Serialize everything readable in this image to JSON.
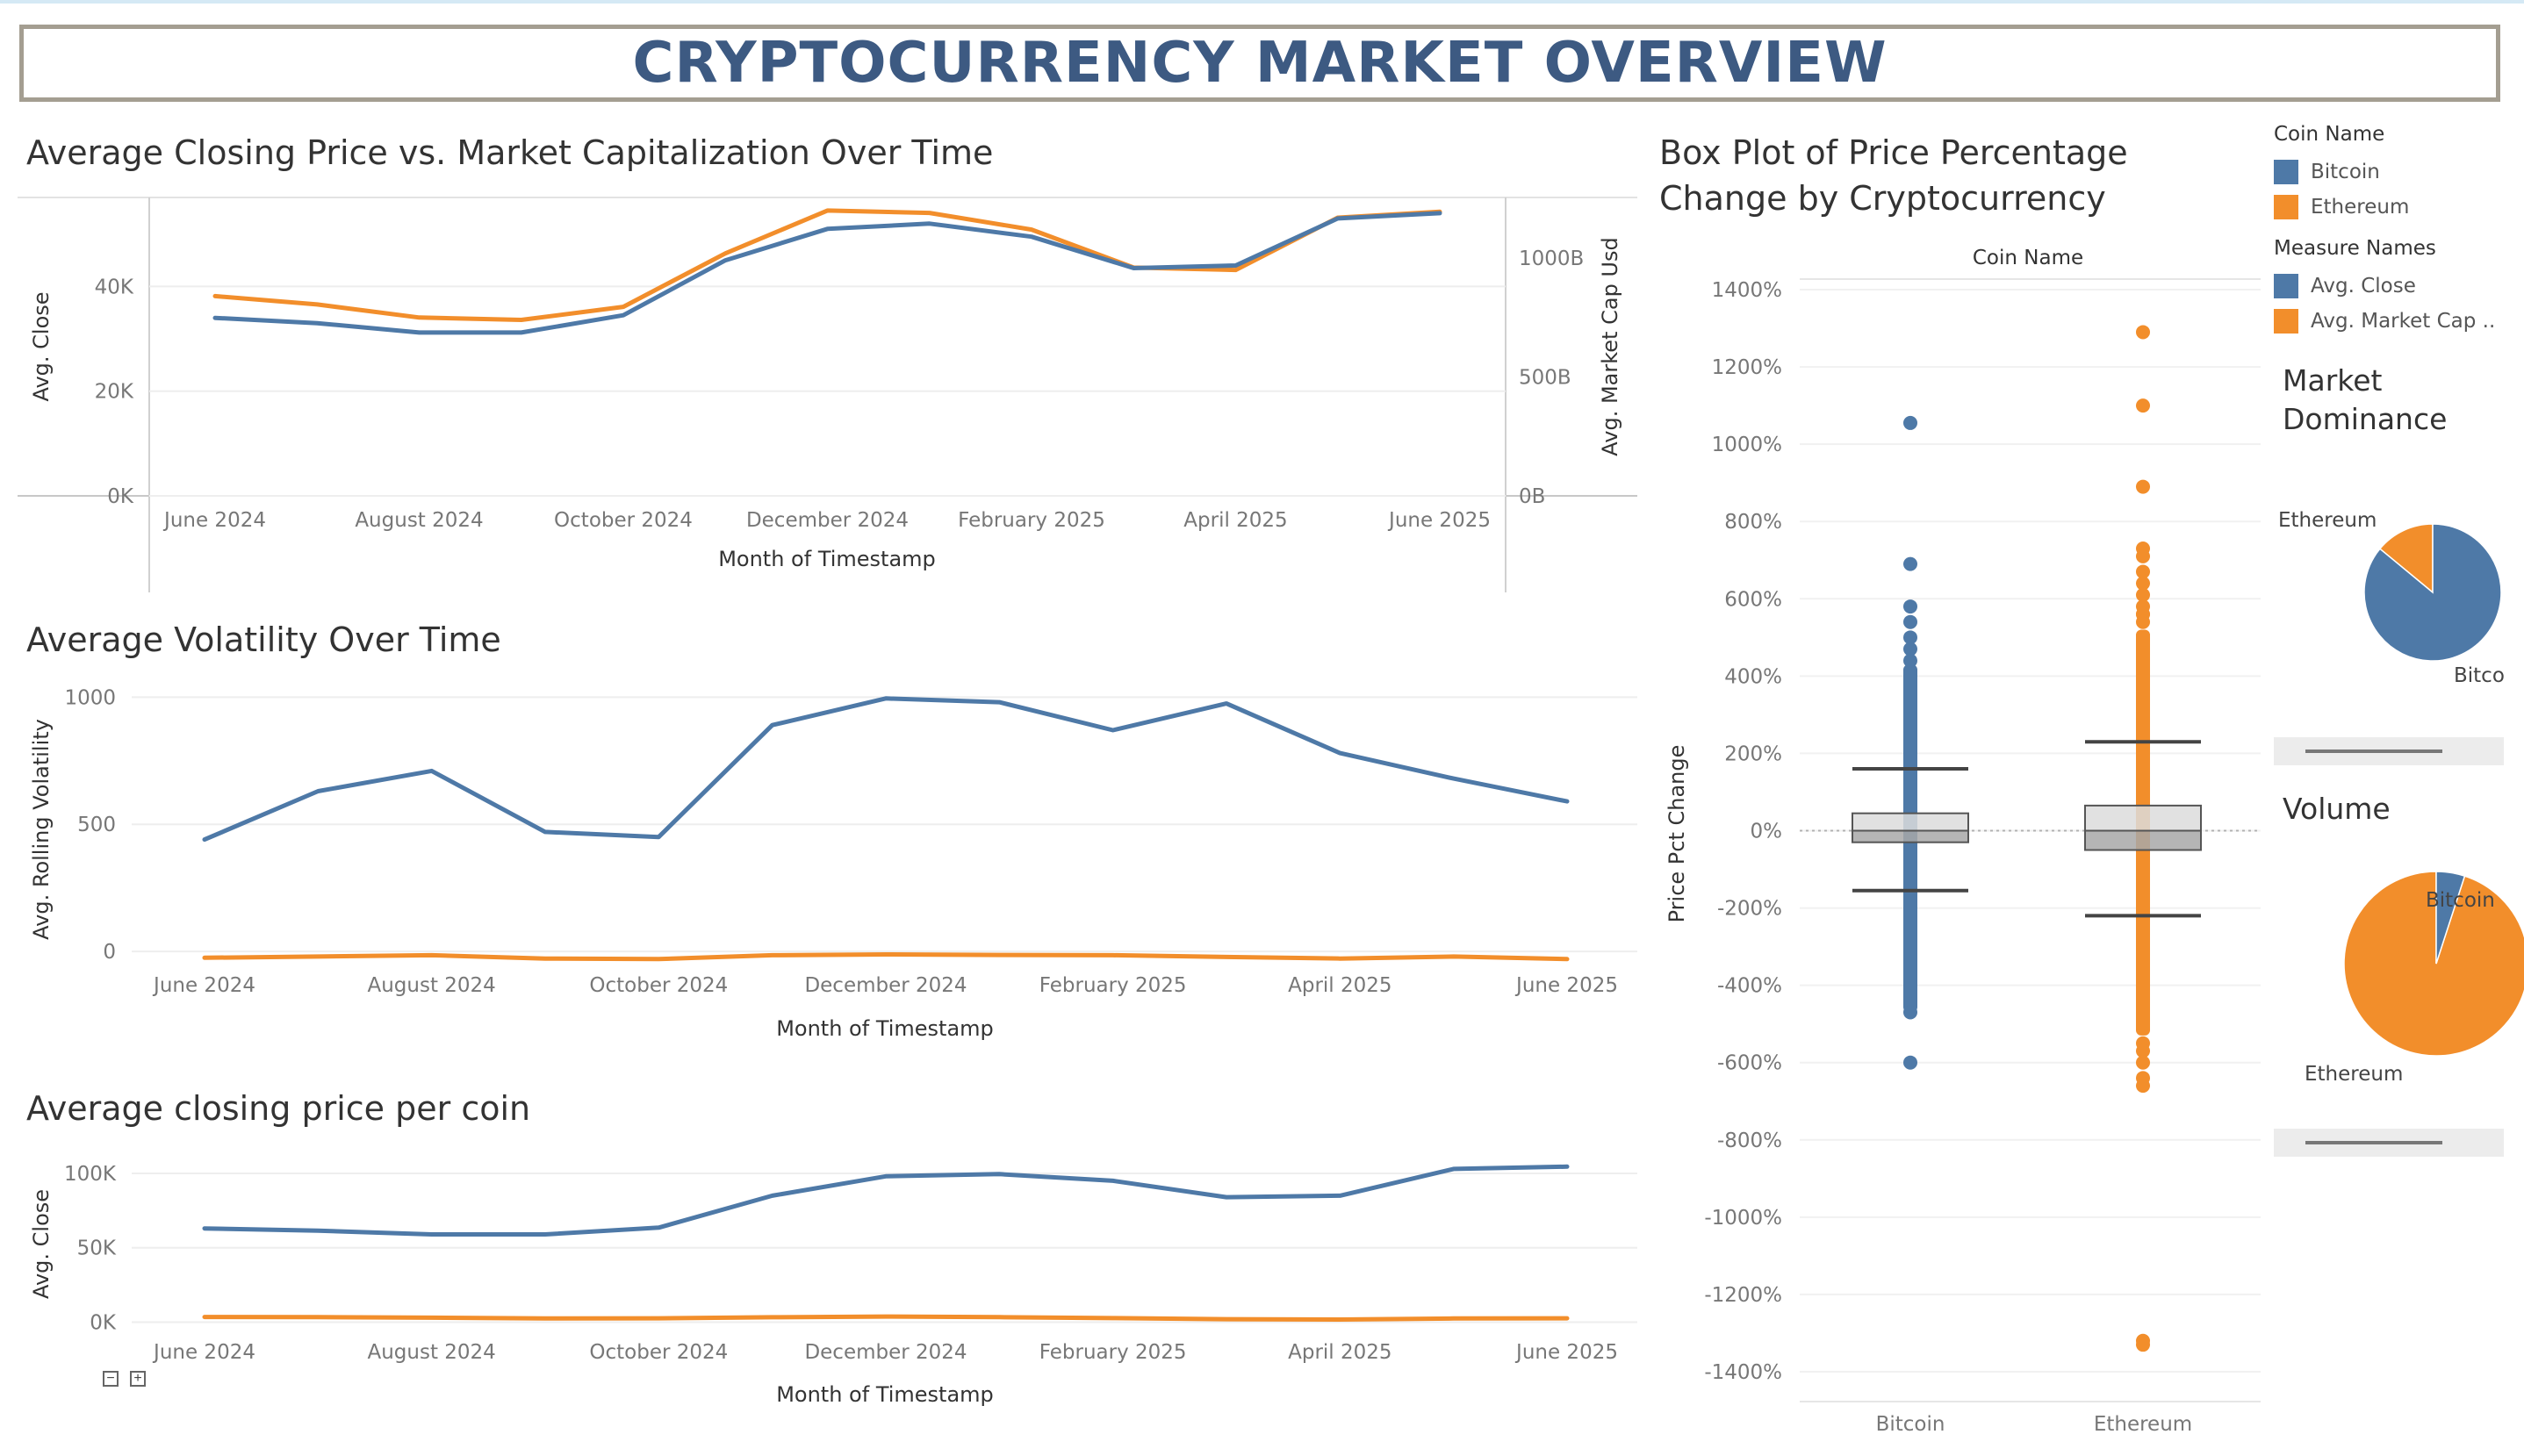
{
  "title": "CRYPTOCURRENCY MARKET OVERVIEW",
  "colors": {
    "bitcoin": "#4e79a7",
    "ethereum": "#f28e2b",
    "title": "#3d5a82"
  },
  "months": [
    "Jun",
    "Jul",
    "Aug",
    "Sep",
    "Oct",
    "Nov",
    "Dec",
    "Jan",
    "Feb",
    "Mar",
    "Apr",
    "May",
    "Jun"
  ],
  "chart_data": [
    {
      "type": "line",
      "title": "Average Closing Price vs. Market Capitalization Over Time",
      "xlabel": "Month of Timestamp",
      "ylabel": "Avg. Close",
      "y2label": "Avg. Market Cap Usd",
      "x_ticks": [
        "June 2024",
        "August 2024",
        "October 2024",
        "December 2024",
        "February 2025",
        "April 2025",
        "June 2025"
      ],
      "y_ticks": [
        "0K",
        "20K",
        "40K"
      ],
      "y2_ticks": [
        "0B",
        "500B",
        "1000B"
      ],
      "ylim": [
        0,
        57000
      ],
      "y2lim": [
        0,
        1255
      ],
      "series": [
        {
          "name": "Avg. Close",
          "axis": "left",
          "values": [
            34000,
            33000,
            31200,
            31200,
            34500,
            45000,
            51000,
            52000,
            49500,
            43500,
            44000,
            53000,
            54000
          ]
        },
        {
          "name": "Avg. Market Cap ..",
          "axis": "right",
          "values": [
            840,
            805,
            750,
            740,
            795,
            1020,
            1200,
            1190,
            1120,
            960,
            950,
            1170,
            1195
          ]
        }
      ]
    },
    {
      "type": "line",
      "title": "Average Volatility Over Time",
      "xlabel": "Month of Timestamp",
      "ylabel": "Avg. Rolling Volatility",
      "x_ticks": [
        "June 2024",
        "August 2024",
        "October 2024",
        "December 2024",
        "February 2025",
        "April 2025",
        "June 2025"
      ],
      "y_ticks": [
        "0",
        "500",
        "1000"
      ],
      "ylim": [
        -55,
        1015
      ],
      "series": [
        {
          "name": "Bitcoin",
          "values": [
            440,
            630,
            710,
            470,
            450,
            890,
            995,
            980,
            870,
            975,
            780,
            680,
            590
          ]
        },
        {
          "name": "Ethereum",
          "values": [
            -25,
            -20,
            -15,
            -28,
            -30,
            -15,
            -12,
            -14,
            -15,
            -22,
            -28,
            -20,
            -30
          ]
        }
      ]
    },
    {
      "type": "line",
      "title": "Average closing price per coin",
      "xlabel": "Month of Timestamp",
      "ylabel": "Avg. Close",
      "x_ticks": [
        "June 2024",
        "August 2024",
        "October 2024",
        "December 2024",
        "February 2025",
        "April 2025",
        "June 2025"
      ],
      "y_ticks": [
        "0K",
        "50K",
        "100K"
      ],
      "ylim": [
        -5000,
        110000
      ],
      "series": [
        {
          "name": "Bitcoin",
          "values": [
            63000,
            61500,
            59000,
            59000,
            63500,
            85000,
            98000,
            99500,
            95000,
            84000,
            85000,
            103000,
            104500
          ]
        },
        {
          "name": "Ethereum",
          "values": [
            3500,
            3400,
            3000,
            2500,
            2600,
            3300,
            3800,
            3400,
            2700,
            2000,
            1800,
            2500,
            2600
          ]
        }
      ]
    },
    {
      "type": "box",
      "title": "Box Plot of Price Percentage Change by Cryptocurrency",
      "header": "Coin Name",
      "categories": [
        "Bitcoin",
        "Ethereum"
      ],
      "ylabel": "Price Pct Change",
      "y_ticks": [
        "1400%",
        "1200%",
        "1000%",
        "800%",
        "600%",
        "400%",
        "200%",
        "0%",
        "-200%",
        "-400%",
        "-600%",
        "-800%",
        "-1000%",
        "-1200%",
        "-1400%"
      ],
      "ylim": [
        -1400,
        1400
      ],
      "boxes": [
        {
          "name": "Bitcoin",
          "lower_whisker": -155,
          "q1": -30,
          "median": 0,
          "q3": 45,
          "upper_whisker": 160,
          "range": [
            -470,
            430
          ],
          "outliers": [
            1055,
            690,
            580,
            540,
            500,
            470,
            440,
            -430,
            -450,
            -470,
            -600
          ]
        },
        {
          "name": "Ethereum",
          "lower_whisker": -220,
          "q1": -50,
          "median": 0,
          "q3": 65,
          "upper_whisker": 230,
          "range": [
            -530,
            520
          ],
          "outliers": [
            1290,
            1100,
            890,
            730,
            710,
            670,
            640,
            610,
            580,
            560,
            560,
            540,
            -550,
            -570,
            -600,
            -640,
            -660,
            -1320,
            -1330
          ]
        }
      ]
    },
    {
      "type": "pie",
      "title": "Market Dominance",
      "slices": [
        {
          "name": "Bitcoin",
          "label": "Bitco",
          "value": 86
        },
        {
          "name": "Ethereum",
          "label": "Ethereum",
          "value": 14
        }
      ]
    },
    {
      "type": "pie",
      "title": "Volume",
      "slices": [
        {
          "name": "Bitcoin",
          "label": "Bitcoin",
          "value": 5
        },
        {
          "name": "Ethereum",
          "label": "Ethereum",
          "value": 95
        }
      ]
    }
  ],
  "legend": {
    "coin_header": "Coin Name",
    "coins": [
      "Bitcoin",
      "Ethereum"
    ],
    "measure_header": "Measure Names",
    "measures": [
      "Avg. Close",
      "Avg. Market Cap .."
    ]
  }
}
